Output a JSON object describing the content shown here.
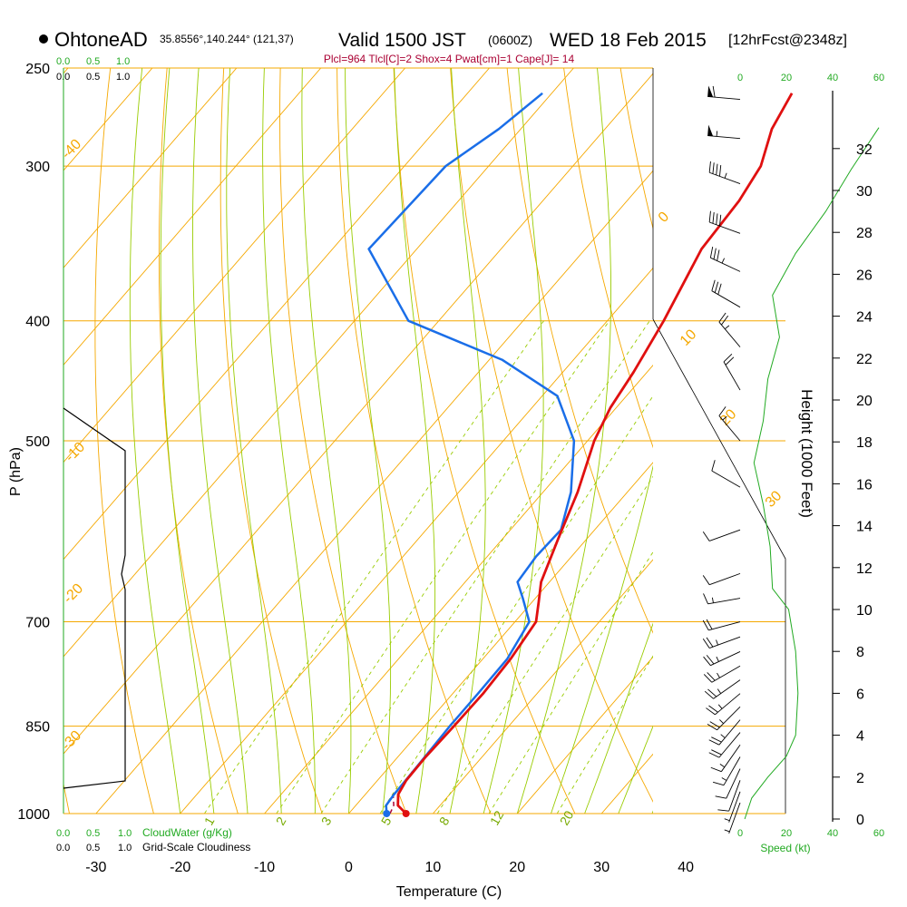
{
  "header": {
    "station": "OhtoneAD",
    "coords": "35.8556°,140.244° (121,37)",
    "valid": "Valid 1500 JST",
    "zulu": "(0600Z)",
    "date": "WED 18 Feb 2015",
    "forecast": "[12hrFcst@2348z]",
    "indices": "Plcl=964 Tlcl[C]=2 Shox=4 Pwat[cm]=1 Cape[J]= 14"
  },
  "scales": {
    "cloud_water_top": [
      "0.0",
      "0.5",
      "1.0"
    ],
    "cloudiness_top": [
      "0.0",
      "0.5",
      "1.0"
    ],
    "cloud_water_bottom": [
      "0.0",
      "0.5",
      "1.0"
    ],
    "cloudiness_bottom": [
      "0.0",
      "0.5",
      "1.0"
    ],
    "cloud_water_label": "CloudWater (g/Kg)",
    "cloudiness_label": "Grid-Scale Cloudiness",
    "speed_ticks": [
      "0",
      "20",
      "40",
      "60"
    ],
    "speed_label": "Speed (kt)"
  },
  "colors": {
    "isobar": "#f5a800",
    "dry_adiabat": "#f5a800",
    "moist_adiabat": "#99cc00",
    "mixing_ratio": "#99cc00",
    "temperature": "#e01010",
    "dewpoint": "#1a6ee8",
    "scale_green": "#22aa22",
    "indices": "#aa0033"
  },
  "chart_data": {
    "type": "skew-t",
    "xlabel": "Temperature (C)",
    "ylabel": "P (hPa)",
    "y2label": "Height (1000 Feet)",
    "x_ticks": [
      -30,
      -20,
      -10,
      0,
      10,
      20,
      30,
      40
    ],
    "p_ticks": [
      250,
      300,
      400,
      500,
      700,
      850,
      1000
    ],
    "height_ticks": [
      0,
      2,
      4,
      6,
      8,
      10,
      12,
      14,
      16,
      18,
      20,
      22,
      24,
      26,
      28,
      30,
      32
    ],
    "dry_adiabat_labels": [
      "0",
      "10",
      "20",
      "30",
      "-10",
      "-20",
      "-30",
      "-40"
    ],
    "moist_adiabat_labels": [
      "1",
      "2",
      "3",
      "5",
      "8",
      "12",
      "20"
    ],
    "temperature_profile": [
      {
        "p": 1000,
        "t": 6.8
      },
      {
        "p": 985,
        "t": 5.0
      },
      {
        "p": 965,
        "t": 3.9
      },
      {
        "p": 940,
        "t": 3.4
      },
      {
        "p": 900,
        "t": 3.3
      },
      {
        "p": 850,
        "t": 3.5
      },
      {
        "p": 800,
        "t": 3.6
      },
      {
        "p": 750,
        "t": 3.3
      },
      {
        "p": 700,
        "t": 2.5
      },
      {
        "p": 675,
        "t": 0.8
      },
      {
        "p": 650,
        "t": -1.0
      },
      {
        "p": 600,
        "t": -3.4
      },
      {
        "p": 550,
        "t": -5.9
      },
      {
        "p": 500,
        "t": -9.2
      },
      {
        "p": 470,
        "t": -10.7
      },
      {
        "p": 440,
        "t": -11.6
      },
      {
        "p": 400,
        "t": -13.3
      },
      {
        "p": 350,
        "t": -16.2
      },
      {
        "p": 320,
        "t": -16.7
      },
      {
        "p": 300,
        "t": -17.7
      },
      {
        "p": 280,
        "t": -20.2
      },
      {
        "p": 262,
        "t": -21.5
      }
    ],
    "dewpoint_profile": [
      {
        "p": 1000,
        "t": 4.5
      },
      {
        "p": 985,
        "t": 3.6
      },
      {
        "p": 965,
        "t": 3.4
      },
      {
        "p": 930,
        "t": 3.3
      },
      {
        "p": 900,
        "t": 3.2
      },
      {
        "p": 850,
        "t": 3.0
      },
      {
        "p": 800,
        "t": 3.0
      },
      {
        "p": 750,
        "t": 2.9
      },
      {
        "p": 700,
        "t": 1.7
      },
      {
        "p": 670,
        "t": -1.5
      },
      {
        "p": 650,
        "t": -3.8
      },
      {
        "p": 620,
        "t": -4.2
      },
      {
        "p": 590,
        "t": -4.0
      },
      {
        "p": 550,
        "t": -6.7
      },
      {
        "p": 500,
        "t": -11.6
      },
      {
        "p": 460,
        "t": -18.2
      },
      {
        "p": 430,
        "t": -28.5
      },
      {
        "p": 400,
        "t": -43.6
      },
      {
        "p": 350,
        "t": -55.7
      },
      {
        "p": 300,
        "t": -55.1
      },
      {
        "p": 280,
        "t": -52.6
      },
      {
        "p": 262,
        "t": -51.1
      }
    ],
    "parcel_profile": [
      {
        "p": 1000,
        "t": 4.9
      },
      {
        "p": 985,
        "t": 4.5
      },
      {
        "p": 965,
        "t": 3.3
      },
      {
        "p": 940,
        "t": 3.5
      },
      {
        "p": 925,
        "t": 3.2
      }
    ],
    "surface_points": {
      "temperature": 6.8,
      "dewpoint": 4.5
    },
    "wind_speed_profile_kt": [
      {
        "ft": 0,
        "v": 2
      },
      {
        "ft": 1000,
        "v": 5
      },
      {
        "ft": 2000,
        "v": 12
      },
      {
        "ft": 3000,
        "v": 20
      },
      {
        "ft": 4000,
        "v": 24
      },
      {
        "ft": 6000,
        "v": 25
      },
      {
        "ft": 8000,
        "v": 24
      },
      {
        "ft": 10000,
        "v": 21
      },
      {
        "ft": 11000,
        "v": 14
      },
      {
        "ft": 13000,
        "v": 13
      },
      {
        "ft": 15000,
        "v": 10
      },
      {
        "ft": 17000,
        "v": 6
      },
      {
        "ft": 19000,
        "v": 10
      },
      {
        "ft": 21000,
        "v": 12
      },
      {
        "ft": 23000,
        "v": 17
      },
      {
        "ft": 25000,
        "v": 14
      },
      {
        "ft": 27000,
        "v": 24
      },
      {
        "ft": 29000,
        "v": 37
      },
      {
        "ft": 31000,
        "v": 48
      },
      {
        "ft": 33000,
        "v": 60
      }
    ],
    "cloudiness_profile": [
      {
        "p": 981,
        "c": 0.0
      },
      {
        "p": 970,
        "c": 1.0
      },
      {
        "p": 700,
        "c": 1.0
      },
      {
        "p": 650,
        "c": 1.0
      },
      {
        "p": 632,
        "c": 0.95
      },
      {
        "p": 600,
        "c": 1.0
      },
      {
        "p": 510,
        "c": 1.0
      },
      {
        "p": 500,
        "c": 0.95
      },
      {
        "p": 450,
        "c": 0.0
      }
    ],
    "wind_barbs": [
      {
        "p": 265,
        "dir": 275,
        "kt": 60
      },
      {
        "p": 285,
        "dir": 275,
        "kt": 55
      },
      {
        "p": 310,
        "dir": 290,
        "kt": 45
      },
      {
        "p": 340,
        "dir": 290,
        "kt": 40
      },
      {
        "p": 365,
        "dir": 295,
        "kt": 35
      },
      {
        "p": 390,
        "dir": 300,
        "kt": 30
      },
      {
        "p": 420,
        "dir": 320,
        "kt": 25
      },
      {
        "p": 455,
        "dir": 330,
        "kt": 20
      },
      {
        "p": 500,
        "dir": 320,
        "kt": 15
      },
      {
        "p": 545,
        "dir": 300,
        "kt": 10
      },
      {
        "p": 590,
        "dir": 250,
        "kt": 10
      },
      {
        "p": 640,
        "dir": 250,
        "kt": 10
      },
      {
        "p": 670,
        "dir": 260,
        "kt": 15
      },
      {
        "p": 700,
        "dir": 255,
        "kt": 20
      },
      {
        "p": 720,
        "dir": 250,
        "kt": 25
      },
      {
        "p": 740,
        "dir": 245,
        "kt": 25
      },
      {
        "p": 760,
        "dir": 240,
        "kt": 25
      },
      {
        "p": 780,
        "dir": 235,
        "kt": 25
      },
      {
        "p": 800,
        "dir": 230,
        "kt": 25
      },
      {
        "p": 820,
        "dir": 225,
        "kt": 25
      },
      {
        "p": 840,
        "dir": 220,
        "kt": 25
      },
      {
        "p": 860,
        "dir": 220,
        "kt": 20
      },
      {
        "p": 880,
        "dir": 215,
        "kt": 15
      },
      {
        "p": 900,
        "dir": 210,
        "kt": 15
      },
      {
        "p": 920,
        "dir": 205,
        "kt": 10
      },
      {
        "p": 940,
        "dir": 200,
        "kt": 10
      },
      {
        "p": 960,
        "dir": 200,
        "kt": 5
      },
      {
        "p": 980,
        "dir": 200,
        "kt": 5
      }
    ]
  }
}
